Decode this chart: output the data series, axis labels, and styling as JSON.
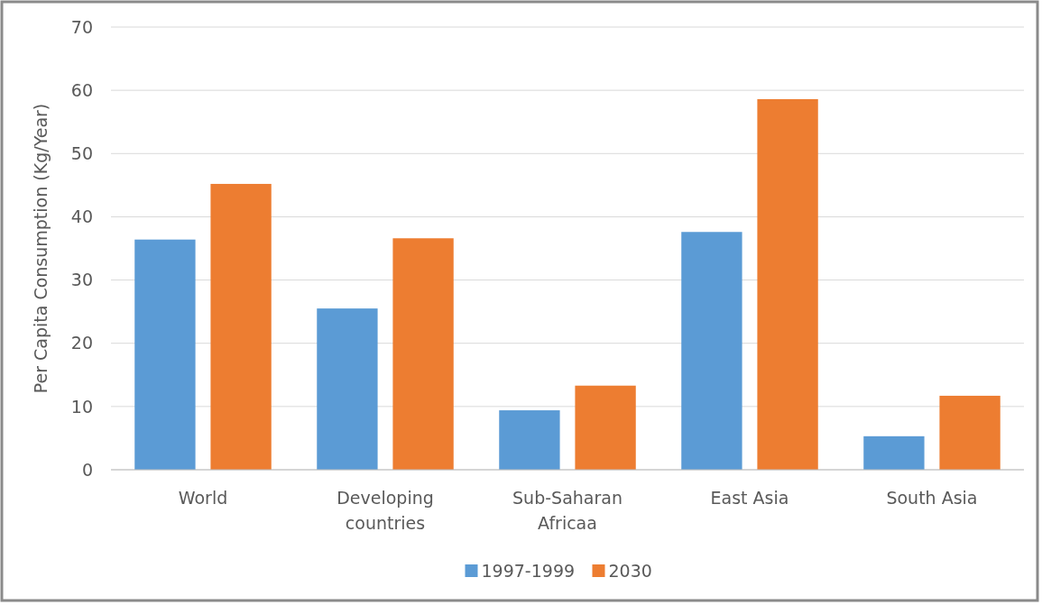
{
  "chart_data": {
    "type": "bar",
    "ylabel": "Per Capita Consumption (Kg/Year)",
    "categories": [
      "World",
      "Developing countries",
      "Sub-Saharan Africaa",
      "East Asia",
      "South Asia"
    ],
    "series": [
      {
        "name": "1997-1999",
        "color": "#5b9bd5",
        "values": [
          36.4,
          25.5,
          9.4,
          37.6,
          5.3
        ]
      },
      {
        "name": "2030",
        "color": "#ed7d31",
        "values": [
          45.2,
          36.6,
          13.3,
          58.6,
          11.7
        ]
      }
    ],
    "ylim": [
      0,
      70
    ],
    "yticks": [
      0,
      10,
      20,
      30,
      40,
      50,
      60,
      70
    ],
    "grid": "y",
    "legend": "bottom"
  }
}
